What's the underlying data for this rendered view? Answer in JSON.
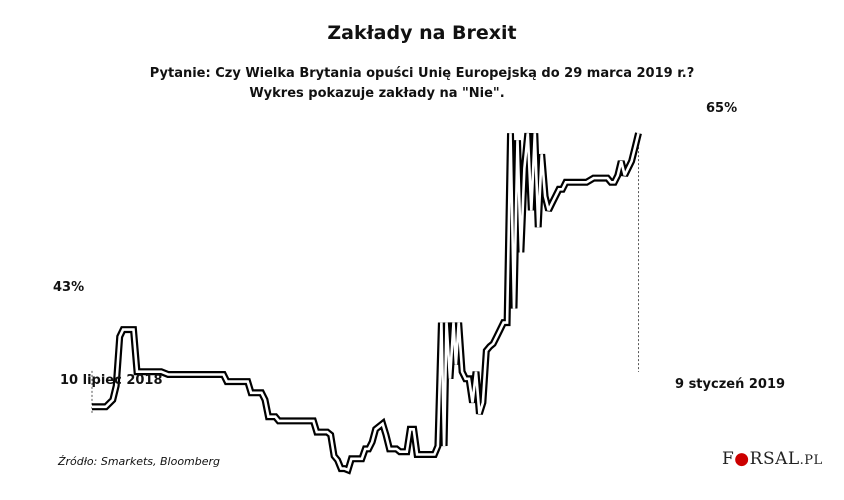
{
  "chart_data": {
    "type": "line",
    "title": "Zakłady na Brexit",
    "subtitle_lines": [
      "Pytanie: Czy Wielka Brytania opuści Unię Europejską do 29 marca 2019 r.?",
      "Wykres pokazuje zakłady na \"Nie\"."
    ],
    "x_start_label": "10 lipiec 2018",
    "x_end_label": "9 styczeń 2019",
    "start_value_label": "43%",
    "end_value_label": "65%",
    "source": "Źródło: Smarkets, Bloomberg",
    "y_unit": "%",
    "ylim": [
      38,
      67
    ],
    "xlim": [
      0,
      183
    ],
    "series": [
      {
        "values": [
          [
            0,
            43
          ],
          [
            4,
            43
          ],
          [
            6,
            43.5
          ],
          [
            7,
            44.5
          ],
          [
            8,
            48
          ],
          [
            9,
            48.5
          ],
          [
            11,
            48.5
          ],
          [
            12,
            48.5
          ],
          [
            13,
            45.5
          ],
          [
            20,
            45.5
          ],
          [
            22,
            45.3
          ],
          [
            38,
            45.3
          ],
          [
            39,
            44.8
          ],
          [
            40,
            44.8
          ],
          [
            45,
            44.8
          ],
          [
            46,
            44
          ],
          [
            49,
            44
          ],
          [
            50,
            43.5
          ],
          [
            51,
            42.3
          ],
          [
            53,
            42.3
          ],
          [
            54,
            42
          ],
          [
            64,
            42
          ],
          [
            65,
            41.2
          ],
          [
            68,
            41.2
          ],
          [
            69,
            41
          ],
          [
            70,
            39.5
          ],
          [
            71,
            39.2
          ],
          [
            72,
            38.6
          ],
          [
            73,
            38.6
          ],
          [
            74,
            38.5
          ],
          [
            75,
            39.3
          ],
          [
            78,
            39.3
          ],
          [
            79,
            40
          ],
          [
            80,
            40
          ],
          [
            81,
            40.5
          ],
          [
            82,
            41.4
          ],
          [
            84,
            41.8
          ],
          [
            85,
            41
          ],
          [
            86,
            40
          ],
          [
            87,
            40
          ],
          [
            88,
            40
          ],
          [
            89,
            39.8
          ],
          [
            91,
            39.8
          ],
          [
            92,
            41.4
          ],
          [
            93,
            41.4
          ],
          [
            94,
            39.6
          ],
          [
            99,
            39.6
          ],
          [
            100,
            40.2
          ],
          [
            101,
            49
          ],
          [
            101.8,
            40.2
          ],
          [
            102.5,
            49
          ],
          [
            103.5,
            45
          ],
          [
            104.5,
            49
          ],
          [
            105.2,
            46
          ],
          [
            106,
            49
          ],
          [
            107,
            45.5
          ],
          [
            108,
            45
          ],
          [
            109,
            45
          ],
          [
            110,
            43.3
          ],
          [
            111,
            45.5
          ],
          [
            112,
            42.5
          ],
          [
            113,
            43.3
          ],
          [
            114,
            47
          ],
          [
            115,
            47.3
          ],
          [
            116,
            47.5
          ],
          [
            117,
            48
          ],
          [
            118,
            48.5
          ],
          [
            119,
            49
          ],
          [
            120,
            49
          ],
          [
            121,
            62.5
          ],
          [
            122,
            50
          ],
          [
            123,
            62
          ],
          [
            124,
            54
          ],
          [
            125,
            60
          ],
          [
            126,
            62.5
          ],
          [
            127,
            57
          ],
          [
            128,
            62.5
          ],
          [
            129,
            55.8
          ],
          [
            130,
            61
          ],
          [
            131,
            58
          ],
          [
            132,
            57
          ],
          [
            133,
            57.5
          ],
          [
            134,
            58
          ],
          [
            135,
            58.5
          ],
          [
            136,
            58.5
          ],
          [
            137,
            59
          ],
          [
            139,
            59
          ],
          [
            141,
            59
          ],
          [
            143,
            59
          ],
          [
            145,
            59.3
          ],
          [
            147,
            59.3
          ],
          [
            149,
            59.3
          ],
          [
            150,
            59
          ],
          [
            151,
            59
          ],
          [
            152,
            59.5
          ],
          [
            153,
            60.5
          ],
          [
            154,
            59.5
          ],
          [
            156,
            60.5
          ],
          [
            157,
            61.5
          ],
          [
            158,
            62.5
          ]
        ]
      }
    ]
  }
}
